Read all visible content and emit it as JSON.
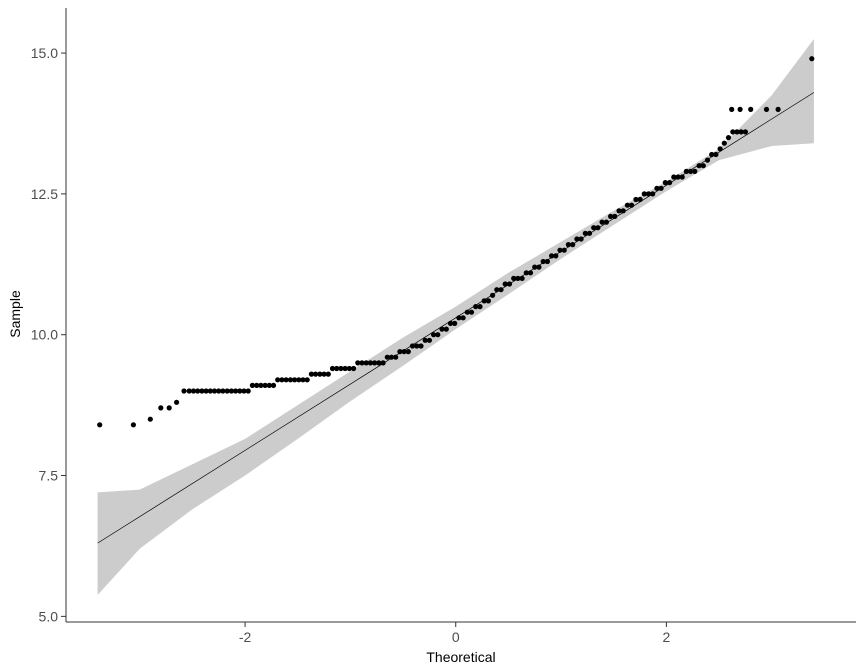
{
  "chart_data": {
    "type": "scatter",
    "subtype": "qq-plot",
    "title": "",
    "xlabel": "Theoretical",
    "ylabel": "Sample",
    "xlim": [
      -3.7,
      3.8
    ],
    "ylim": [
      4.9,
      15.8
    ],
    "x_ticks": [
      -2,
      0,
      2
    ],
    "x_tick_labels": [
      "-2",
      "0",
      "2"
    ],
    "y_ticks": [
      5.0,
      7.5,
      10.0,
      12.5,
      15.0
    ],
    "y_tick_labels": [
      "5.0",
      "7.5",
      "10.0",
      "12.5",
      "15.0"
    ],
    "grid": false,
    "legend": "none",
    "colors": {
      "points": "#000000",
      "line": "#000000",
      "band": "#cccccc",
      "axis": "#333333"
    },
    "reference_line": {
      "x": [
        -3.4,
        3.4
      ],
      "y": [
        6.3,
        14.3
      ]
    },
    "confidence_band": {
      "x": [
        -3.4,
        -3.0,
        -2.5,
        -2.0,
        -1.5,
        -1.0,
        -0.5,
        0.0,
        0.5,
        1.0,
        1.5,
        2.0,
        2.5,
        3.0,
        3.4
      ],
      "lower": [
        5.38,
        6.2,
        6.9,
        7.5,
        8.15,
        8.82,
        9.45,
        10.1,
        10.72,
        11.35,
        11.95,
        12.55,
        13.1,
        13.35,
        13.4
      ],
      "upper": [
        7.2,
        7.25,
        7.7,
        8.15,
        8.75,
        9.35,
        9.95,
        10.5,
        11.1,
        11.65,
        12.2,
        12.72,
        13.3,
        14.25,
        15.25
      ]
    },
    "series": [
      {
        "points": [
          [
            -3.38,
            8.4
          ],
          [
            -3.06,
            8.4
          ],
          [
            -2.9,
            8.5
          ],
          [
            -2.8,
            8.7
          ],
          [
            -2.72,
            8.7
          ],
          [
            -2.65,
            8.8
          ],
          [
            -2.58,
            9.0
          ],
          [
            -2.53,
            9.0
          ],
          [
            -2.49,
            9.0
          ],
          [
            -2.45,
            9.0
          ],
          [
            -2.41,
            9.0
          ],
          [
            -2.37,
            9.0
          ],
          [
            -2.33,
            9.0
          ],
          [
            -2.29,
            9.0
          ],
          [
            -2.25,
            9.0
          ],
          [
            -2.21,
            9.0
          ],
          [
            -2.17,
            9.0
          ],
          [
            -2.13,
            9.0
          ],
          [
            -2.09,
            9.0
          ],
          [
            -2.05,
            9.0
          ],
          [
            -2.01,
            9.0
          ],
          [
            -1.97,
            9.0
          ],
          [
            -1.93,
            9.1
          ],
          [
            -1.89,
            9.1
          ],
          [
            -1.85,
            9.1
          ],
          [
            -1.81,
            9.1
          ],
          [
            -1.77,
            9.1
          ],
          [
            -1.73,
            9.1
          ],
          [
            -1.69,
            9.2
          ],
          [
            -1.65,
            9.2
          ],
          [
            -1.61,
            9.2
          ],
          [
            -1.57,
            9.2
          ],
          [
            -1.53,
            9.2
          ],
          [
            -1.49,
            9.2
          ],
          [
            -1.45,
            9.2
          ],
          [
            -1.41,
            9.2
          ],
          [
            -1.37,
            9.3
          ],
          [
            -1.33,
            9.3
          ],
          [
            -1.29,
            9.3
          ],
          [
            -1.25,
            9.3
          ],
          [
            -1.21,
            9.3
          ],
          [
            -1.17,
            9.4
          ],
          [
            -1.13,
            9.4
          ],
          [
            -1.09,
            9.4
          ],
          [
            -1.05,
            9.4
          ],
          [
            -1.01,
            9.4
          ],
          [
            -0.97,
            9.4
          ],
          [
            -0.93,
            9.5
          ],
          [
            -0.89,
            9.5
          ],
          [
            -0.85,
            9.5
          ],
          [
            -0.81,
            9.5
          ],
          [
            -0.77,
            9.5
          ],
          [
            -0.73,
            9.5
          ],
          [
            -0.69,
            9.5
          ],
          [
            -0.65,
            9.6
          ],
          [
            -0.61,
            9.6
          ],
          [
            -0.57,
            9.6
          ],
          [
            -0.53,
            9.7
          ],
          [
            -0.49,
            9.7
          ],
          [
            -0.45,
            9.7
          ],
          [
            -0.41,
            9.8
          ],
          [
            -0.37,
            9.8
          ],
          [
            -0.33,
            9.8
          ],
          [
            -0.29,
            9.9
          ],
          [
            -0.25,
            9.9
          ],
          [
            -0.21,
            10.0
          ],
          [
            -0.17,
            10.0
          ],
          [
            -0.13,
            10.1
          ],
          [
            -0.09,
            10.1
          ],
          [
            -0.05,
            10.2
          ],
          [
            -0.01,
            10.2
          ],
          [
            0.03,
            10.3
          ],
          [
            0.07,
            10.3
          ],
          [
            0.11,
            10.4
          ],
          [
            0.15,
            10.4
          ],
          [
            0.19,
            10.5
          ],
          [
            0.23,
            10.5
          ],
          [
            0.27,
            10.6
          ],
          [
            0.31,
            10.6
          ],
          [
            0.35,
            10.7
          ],
          [
            0.39,
            10.8
          ],
          [
            0.43,
            10.8
          ],
          [
            0.47,
            10.9
          ],
          [
            0.51,
            10.9
          ],
          [
            0.55,
            11.0
          ],
          [
            0.59,
            11.0
          ],
          [
            0.63,
            11.0
          ],
          [
            0.67,
            11.1
          ],
          [
            0.71,
            11.1
          ],
          [
            0.75,
            11.2
          ],
          [
            0.79,
            11.2
          ],
          [
            0.83,
            11.3
          ],
          [
            0.87,
            11.3
          ],
          [
            0.91,
            11.4
          ],
          [
            0.95,
            11.4
          ],
          [
            0.99,
            11.5
          ],
          [
            1.03,
            11.5
          ],
          [
            1.07,
            11.6
          ],
          [
            1.11,
            11.6
          ],
          [
            1.15,
            11.7
          ],
          [
            1.19,
            11.7
          ],
          [
            1.23,
            11.8
          ],
          [
            1.27,
            11.8
          ],
          [
            1.31,
            11.9
          ],
          [
            1.35,
            11.9
          ],
          [
            1.39,
            12.0
          ],
          [
            1.43,
            12.0
          ],
          [
            1.47,
            12.1
          ],
          [
            1.51,
            12.1
          ],
          [
            1.55,
            12.2
          ],
          [
            1.59,
            12.2
          ],
          [
            1.63,
            12.3
          ],
          [
            1.67,
            12.3
          ],
          [
            1.71,
            12.4
          ],
          [
            1.75,
            12.4
          ],
          [
            1.79,
            12.5
          ],
          [
            1.83,
            12.5
          ],
          [
            1.87,
            12.5
          ],
          [
            1.91,
            12.6
          ],
          [
            1.95,
            12.6
          ],
          [
            1.99,
            12.7
          ],
          [
            2.03,
            12.7
          ],
          [
            2.07,
            12.8
          ],
          [
            2.11,
            12.8
          ],
          [
            2.15,
            12.8
          ],
          [
            2.19,
            12.9
          ],
          [
            2.23,
            12.9
          ],
          [
            2.27,
            12.9
          ],
          [
            2.31,
            13.0
          ],
          [
            2.35,
            13.0
          ],
          [
            2.39,
            13.1
          ],
          [
            2.43,
            13.2
          ],
          [
            2.47,
            13.2
          ],
          [
            2.51,
            13.3
          ],
          [
            2.55,
            13.4
          ],
          [
            2.59,
            13.5
          ],
          [
            2.63,
            13.6
          ],
          [
            2.67,
            13.6
          ],
          [
            2.71,
            13.6
          ],
          [
            2.75,
            13.6
          ],
          [
            2.62,
            14.0
          ],
          [
            2.7,
            14.0
          ],
          [
            2.8,
            14.0
          ],
          [
            2.95,
            14.0
          ],
          [
            3.06,
            14.0
          ],
          [
            3.38,
            14.9
          ]
        ]
      }
    ]
  }
}
